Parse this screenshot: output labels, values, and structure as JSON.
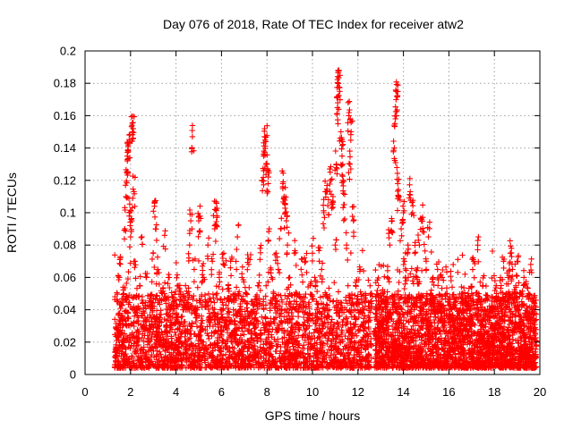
{
  "chart_data": {
    "type": "scatter",
    "title": "Day 076 of 2018, Rate Of TEC Index for receiver atw2",
    "xlabel": "GPS time / hours",
    "ylabel": "ROTI / TECUs",
    "xlim": [
      0,
      20
    ],
    "ylim": [
      0,
      0.2
    ],
    "xticks": [
      0,
      2,
      4,
      6,
      8,
      10,
      12,
      14,
      16,
      18,
      20
    ],
    "yticks": [
      0,
      0.02,
      0.04,
      0.06,
      0.08,
      0.1,
      0.12,
      0.14,
      0.16,
      0.18,
      0.2
    ],
    "xtick_labels": [
      "0",
      "2",
      "4",
      "6",
      "8",
      "10",
      "12",
      "14",
      "16",
      "18",
      "20"
    ],
    "ytick_labels": [
      "0",
      "0.02",
      "0.04",
      "0.06",
      "0.08",
      "0.1",
      "0.12",
      "0.14",
      "0.16",
      "0.18",
      "0.2"
    ],
    "grid": true,
    "marker": "+",
    "series": [
      {
        "name": "ROTI",
        "color": "#ff0000",
        "points": [
          [
            1.35,
            0.012
          ],
          [
            1.4,
            0.028
          ],
          [
            1.45,
            0.045
          ],
          [
            1.5,
            0.06
          ],
          [
            1.55,
            0.072
          ],
          [
            1.6,
            0.035
          ],
          [
            1.65,
            0.02
          ],
          [
            1.7,
            0.05
          ],
          [
            1.75,
            0.09
          ],
          [
            1.8,
            0.11
          ],
          [
            1.83,
            0.125
          ],
          [
            1.86,
            0.132
          ],
          [
            1.9,
            0.138
          ],
          [
            1.93,
            0.143
          ],
          [
            1.97,
            0.1
          ],
          [
            2.0,
            0.085
          ],
          [
            2.05,
            0.095
          ],
          [
            2.08,
            0.15
          ],
          [
            2.12,
            0.152
          ],
          [
            2.15,
            0.113
          ],
          [
            2.2,
            0.07
          ],
          [
            2.3,
            0.04
          ],
          [
            2.4,
            0.055
          ],
          [
            2.5,
            0.085
          ],
          [
            2.6,
            0.03
          ],
          [
            2.7,
            0.06
          ],
          [
            2.8,
            0.02
          ],
          [
            2.9,
            0.045
          ],
          [
            3.0,
            0.075
          ],
          [
            3.05,
            0.104
          ],
          [
            3.1,
            0.09
          ],
          [
            3.2,
            0.065
          ],
          [
            3.3,
            0.035
          ],
          [
            3.4,
            0.05
          ],
          [
            3.5,
            0.086
          ],
          [
            3.6,
            0.03
          ],
          [
            3.7,
            0.06
          ],
          [
            3.8,
            0.02
          ],
          [
            3.9,
            0.045
          ],
          [
            4.0,
            0.035
          ],
          [
            4.1,
            0.055
          ],
          [
            4.2,
            0.025
          ],
          [
            4.3,
            0.04
          ],
          [
            4.4,
            0.03
          ],
          [
            4.5,
            0.05
          ],
          [
            4.6,
            0.08
          ],
          [
            4.65,
            0.095
          ],
          [
            4.72,
            0.147
          ],
          [
            4.8,
            0.065
          ],
          [
            4.9,
            0.04
          ],
          [
            5.0,
            0.095
          ],
          [
            5.05,
            0.088
          ],
          [
            5.1,
            0.03
          ],
          [
            5.2,
            0.06
          ],
          [
            5.3,
            0.045
          ],
          [
            5.4,
            0.08
          ],
          [
            5.5,
            0.035
          ],
          [
            5.6,
            0.07
          ],
          [
            5.7,
            0.09
          ],
          [
            5.75,
            0.102
          ],
          [
            5.8,
            0.098
          ],
          [
            5.9,
            0.06
          ],
          [
            6.0,
            0.04
          ],
          [
            6.1,
            0.075
          ],
          [
            6.2,
            0.03
          ],
          [
            6.3,
            0.055
          ],
          [
            6.4,
            0.07
          ],
          [
            6.5,
            0.025
          ],
          [
            6.6,
            0.05
          ],
          [
            6.7,
            0.085
          ],
          [
            6.8,
            0.04
          ],
          [
            6.9,
            0.06
          ],
          [
            7.0,
            0.03
          ],
          [
            7.1,
            0.05
          ],
          [
            7.2,
            0.068
          ],
          [
            7.3,
            0.025
          ],
          [
            7.4,
            0.04
          ],
          [
            7.5,
            0.035
          ],
          [
            7.6,
            0.055
          ],
          [
            7.7,
            0.078
          ],
          [
            7.8,
            0.12
          ],
          [
            7.85,
            0.135
          ],
          [
            7.9,
            0.147
          ],
          [
            7.95,
            0.144
          ],
          [
            8.0,
            0.13
          ],
          [
            8.05,
            0.118
          ],
          [
            8.1,
            0.09
          ],
          [
            8.2,
            0.06
          ],
          [
            8.3,
            0.05
          ],
          [
            8.4,
            0.075
          ],
          [
            8.5,
            0.065
          ],
          [
            8.6,
            0.09
          ],
          [
            8.7,
            0.118
          ],
          [
            8.75,
            0.11
          ],
          [
            8.8,
            0.1
          ],
          [
            8.85,
            0.095
          ],
          [
            8.9,
            0.08
          ],
          [
            9.0,
            0.06
          ],
          [
            9.1,
            0.04
          ],
          [
            9.2,
            0.075
          ],
          [
            9.3,
            0.05
          ],
          [
            9.4,
            0.03
          ],
          [
            9.5,
            0.065
          ],
          [
            9.6,
            0.045
          ],
          [
            9.7,
            0.07
          ],
          [
            9.8,
            0.035
          ],
          [
            9.9,
            0.055
          ],
          [
            10.0,
            0.075
          ],
          [
            10.1,
            0.06
          ],
          [
            10.2,
            0.04
          ],
          [
            10.3,
            0.07
          ],
          [
            10.4,
            0.065
          ],
          [
            10.5,
            0.1
          ],
          [
            10.6,
            0.113
          ],
          [
            10.7,
            0.108
          ],
          [
            10.8,
            0.12
          ],
          [
            10.9,
            0.11
          ],
          [
            11.0,
            0.08
          ],
          [
            11.05,
            0.13
          ],
          [
            11.1,
            0.165
          ],
          [
            11.13,
            0.18
          ],
          [
            11.16,
            0.188
          ],
          [
            11.2,
            0.175
          ],
          [
            11.25,
            0.15
          ],
          [
            11.3,
            0.135
          ],
          [
            11.35,
            0.12
          ],
          [
            11.4,
            0.105
          ],
          [
            11.5,
            0.08
          ],
          [
            11.6,
            0.16
          ],
          [
            11.65,
            0.13
          ],
          [
            11.7,
            0.15
          ],
          [
            11.8,
            0.095
          ],
          [
            11.9,
            0.055
          ],
          [
            12.0,
            0.04
          ],
          [
            12.1,
            0.065
          ],
          [
            12.2,
            0.03
          ],
          [
            12.3,
            0.045
          ],
          [
            12.4,
            0.02
          ],
          [
            12.5,
            0.035
          ],
          [
            12.6,
            0.05
          ],
          [
            12.7,
            0.025
          ],
          [
            12.8,
            0.04
          ],
          [
            12.9,
            0.055
          ],
          [
            13.0,
            0.03
          ],
          [
            13.1,
            0.05
          ],
          [
            13.2,
            0.035
          ],
          [
            13.3,
            0.06
          ],
          [
            13.4,
            0.08
          ],
          [
            13.5,
            0.095
          ],
          [
            13.6,
            0.14
          ],
          [
            13.65,
            0.158
          ],
          [
            13.7,
            0.175
          ],
          [
            13.72,
            0.172
          ],
          [
            13.75,
            0.118
          ],
          [
            13.8,
            0.11
          ],
          [
            13.9,
            0.09
          ],
          [
            14.0,
            0.1
          ],
          [
            14.05,
            0.07
          ],
          [
            14.1,
            0.06
          ],
          [
            14.2,
            0.08
          ],
          [
            14.3,
            0.113
          ],
          [
            14.4,
            0.1
          ],
          [
            14.5,
            0.075
          ],
          [
            14.6,
            0.06
          ],
          [
            14.7,
            0.08
          ],
          [
            14.8,
            0.096
          ],
          [
            14.9,
            0.088
          ],
          [
            15.0,
            0.07
          ],
          [
            15.1,
            0.085
          ],
          [
            15.2,
            0.05
          ],
          [
            15.3,
            0.06
          ],
          [
            15.4,
            0.04
          ],
          [
            15.5,
            0.065
          ],
          [
            15.6,
            0.045
          ],
          [
            15.7,
            0.06
          ],
          [
            15.8,
            0.03
          ],
          [
            15.9,
            0.05
          ],
          [
            16.0,
            0.04
          ],
          [
            16.1,
            0.058
          ],
          [
            16.2,
            0.03
          ],
          [
            16.3,
            0.045
          ],
          [
            16.4,
            0.025
          ],
          [
            16.5,
            0.035
          ],
          [
            16.6,
            0.05
          ],
          [
            16.7,
            0.02
          ],
          [
            16.8,
            0.04
          ],
          [
            16.9,
            0.03
          ],
          [
            17.0,
            0.05
          ],
          [
            17.1,
            0.07
          ],
          [
            17.2,
            0.045
          ],
          [
            17.3,
            0.085
          ],
          [
            17.4,
            0.03
          ],
          [
            17.5,
            0.055
          ],
          [
            17.6,
            0.04
          ],
          [
            17.7,
            0.02
          ],
          [
            17.8,
            0.035
          ],
          [
            17.9,
            0.025
          ],
          [
            18.0,
            0.04
          ],
          [
            18.1,
            0.05
          ],
          [
            18.2,
            0.03
          ],
          [
            18.3,
            0.055
          ],
          [
            18.4,
            0.07
          ],
          [
            18.5,
            0.04
          ],
          [
            18.6,
            0.06
          ],
          [
            18.7,
            0.075
          ],
          [
            18.75,
            0.078
          ],
          [
            18.8,
            0.065
          ],
          [
            18.9,
            0.05
          ],
          [
            19.0,
            0.07
          ],
          [
            19.1,
            0.03
          ],
          [
            19.2,
            0.045
          ],
          [
            19.3,
            0.06
          ],
          [
            19.4,
            0.035
          ],
          [
            19.5,
            0.05
          ],
          [
            19.6,
            0.068
          ],
          [
            19.7,
            0.04
          ],
          [
            19.8,
            0.025
          ]
        ]
      }
    ],
    "dense_band": {
      "description": "densely packed ROTI values 0.005 to 0.05 across observing span",
      "x_ranges": [
        [
          1.3,
          12.6
        ],
        [
          12.75,
          19.85
        ]
      ],
      "base_min": 0.004,
      "base_max": 0.05,
      "sample_count": 5200
    }
  }
}
